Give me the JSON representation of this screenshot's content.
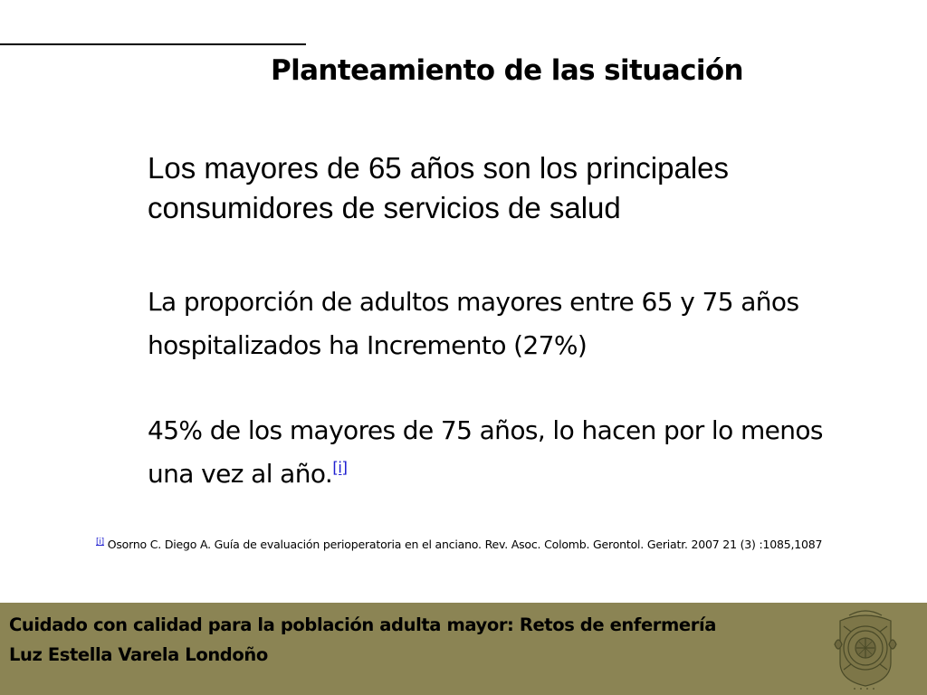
{
  "slide": {
    "title": "Planteamiento de las situación",
    "paragraphs": {
      "p1": "Los mayores de 65 años son los principales consumidores de servicios de salud",
      "p2": "La proporción de adultos mayores entre 65 y 75 años hospitalizados ha Incremento  (27%)",
      "p3": "45% de los mayores de 75 años, lo hacen por lo menos una vez al año.",
      "p3_ref": "[i]"
    },
    "footnote": {
      "mark": "[i]",
      "text": " Osorno C. Diego A. Guía de evaluación  perioperatoria en el anciano. Rev. Asoc. Colomb. Gerontol. Geriatr. 2007  21 (3) :1085,1087"
    }
  },
  "footer": {
    "line1": "Cuidado con calidad para la población adulta mayor: Retos de enfermería",
    "line2": "Luz Estella Varela Londoño",
    "seal_icon": "university-seal-icon",
    "background_color": "#8b8454"
  }
}
